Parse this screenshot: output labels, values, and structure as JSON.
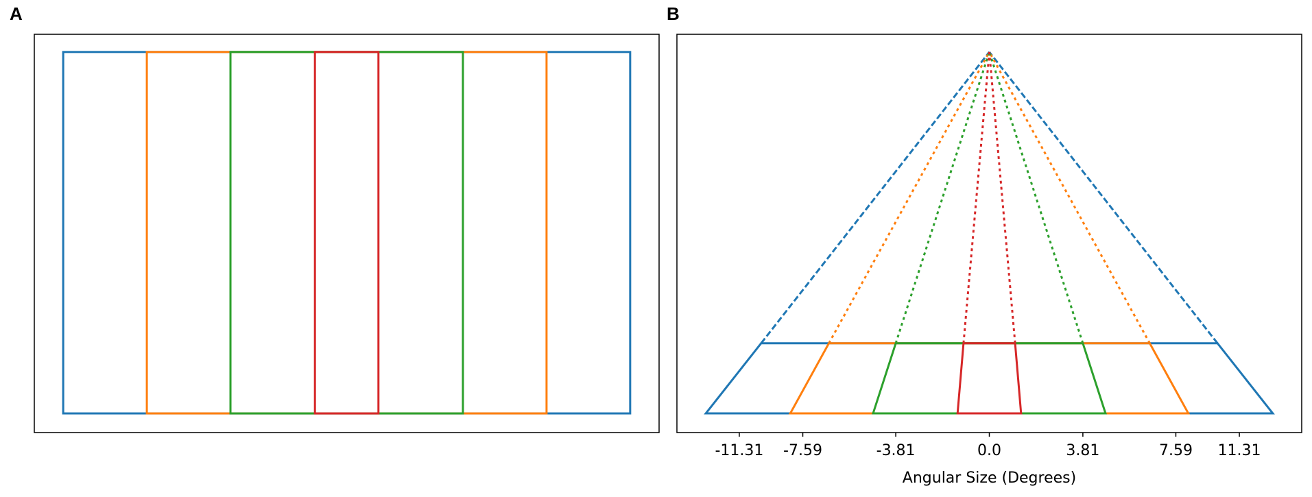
{
  "chart_data": [
    {
      "type": "rect",
      "panel_label": "A",
      "xlim": [
        -1.102,
        1.102
      ],
      "ylim": [
        -0.053,
        1.049
      ],
      "y_levels": [
        0,
        1
      ],
      "series": [
        {
          "color": "#1f77b4",
          "values": [
            1
          ]
        },
        {
          "color": "#ff7f0e",
          "values": [
            0.705
          ]
        },
        {
          "color": "#2ca02c",
          "values": [
            0.41
          ]
        },
        {
          "color": "#d62728",
          "values": [
            0.112
          ]
        }
      ]
    },
    {
      "type": "trapezoid",
      "panel_label": "B",
      "xlabel": "Angular Size (Degrees)",
      "xlim": [
        -1.102,
        1.102
      ],
      "ylim": [
        -0.053,
        1.049
      ],
      "y_levels": [
        0,
        0.194
      ],
      "apex": [
        0,
        1
      ],
      "xticks": [
        {
          "value": -0.882,
          "label": "-11.31"
        },
        {
          "value": -0.658,
          "label": "-7.59"
        },
        {
          "value": -0.33,
          "label": "-3.81"
        },
        {
          "value": 0,
          "label": "0.0"
        },
        {
          "value": 0.33,
          "label": "3.81"
        },
        {
          "value": 0.658,
          "label": "7.59"
        },
        {
          "value": 0.882,
          "label": "11.31"
        }
      ],
      "series": [
        {
          "color": "#1f77b4",
          "linestyle": "dashed",
          "values": [
            1,
            0.805
          ]
        },
        {
          "color": "#ff7f0e",
          "linestyle": "dotted",
          "values": [
            0.702,
            0.566
          ]
        },
        {
          "color": "#2ca02c",
          "linestyle": "dotted",
          "values": [
            0.41,
            0.33
          ]
        },
        {
          "color": "#d62728",
          "linestyle": "dotted",
          "values": [
            0.112,
            0.091
          ]
        }
      ]
    }
  ]
}
